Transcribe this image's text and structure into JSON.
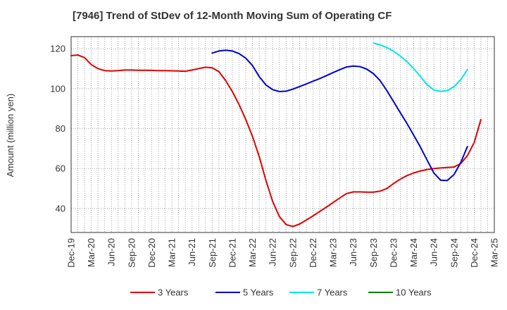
{
  "chart_data": {
    "type": "line",
    "title": "[7946]  Trend of StDev of 12-Month Moving Sum of Operating CF",
    "ylabel": "Amount (million yen)",
    "xlabel": "",
    "ylim": [
      28,
      126
    ],
    "yticks": [
      40,
      60,
      80,
      100,
      120
    ],
    "xticks": [
      "Dec-19",
      "Mar-20",
      "Jun-20",
      "Sep-20",
      "Dec-20",
      "Mar-21",
      "Jun-21",
      "Sep-21",
      "Dec-21",
      "Mar-22",
      "Jun-22",
      "Sep-22",
      "Dec-22",
      "Mar-23",
      "Jun-23",
      "Sep-23",
      "Dec-23",
      "Mar-24",
      "Jun-24",
      "Sep-24",
      "Dec-24",
      "Mar-25"
    ],
    "grid": true,
    "legend_position": "bottom",
    "series": [
      {
        "name": "3 Years",
        "color": "#e00000",
        "start_month_index": 0,
        "values": [
          116.5,
          116.8,
          115.5,
          112.0,
          110.0,
          109.0,
          108.8,
          109.0,
          109.3,
          109.3,
          109.2,
          109.2,
          109.1,
          109.0,
          109.0,
          108.9,
          108.8,
          108.7,
          109.3,
          110.0,
          110.7,
          110.4,
          108.5,
          104.0,
          98.5,
          92.0,
          84.5,
          76.0,
          66.0,
          54.0,
          43.5,
          36.0,
          32.0,
          31.0,
          32.2,
          34.2,
          36.3,
          38.5,
          40.7,
          43.0,
          45.3,
          47.5,
          48.3,
          48.3,
          48.2,
          48.2,
          48.7,
          50.0,
          52.5,
          54.7,
          56.5,
          57.8,
          58.8,
          59.5,
          60.0,
          60.3,
          60.5,
          60.8,
          62.5,
          66.5,
          73.0,
          84.5
        ]
      },
      {
        "name": "5 Years",
        "color": "#0000cc",
        "start_month_index": 21,
        "values": [
          117.8,
          118.8,
          119.2,
          118.8,
          117.5,
          115.2,
          111.5,
          106.0,
          101.8,
          99.5,
          98.5,
          98.7,
          99.7,
          101.0,
          102.3,
          103.7,
          105.0,
          106.5,
          108.0,
          109.5,
          110.8,
          111.3,
          111.0,
          109.8,
          107.5,
          104.0,
          99.0,
          93.5,
          88.0,
          82.5,
          76.7,
          70.7,
          64.2,
          57.8,
          54.2,
          54.0,
          57.0,
          63.0,
          71.0
        ]
      },
      {
        "name": "7 Years",
        "color": "#00e6e6",
        "start_month_index": 45,
        "values": [
          122.8,
          121.9,
          120.5,
          118.7,
          116.3,
          113.5,
          110.0,
          106.0,
          102.0,
          99.3,
          98.6,
          99.0,
          101.0,
          104.5,
          109.5
        ]
      },
      {
        "name": "10 Years",
        "color": "#008000",
        "start_month_index": 0,
        "values": []
      }
    ]
  }
}
